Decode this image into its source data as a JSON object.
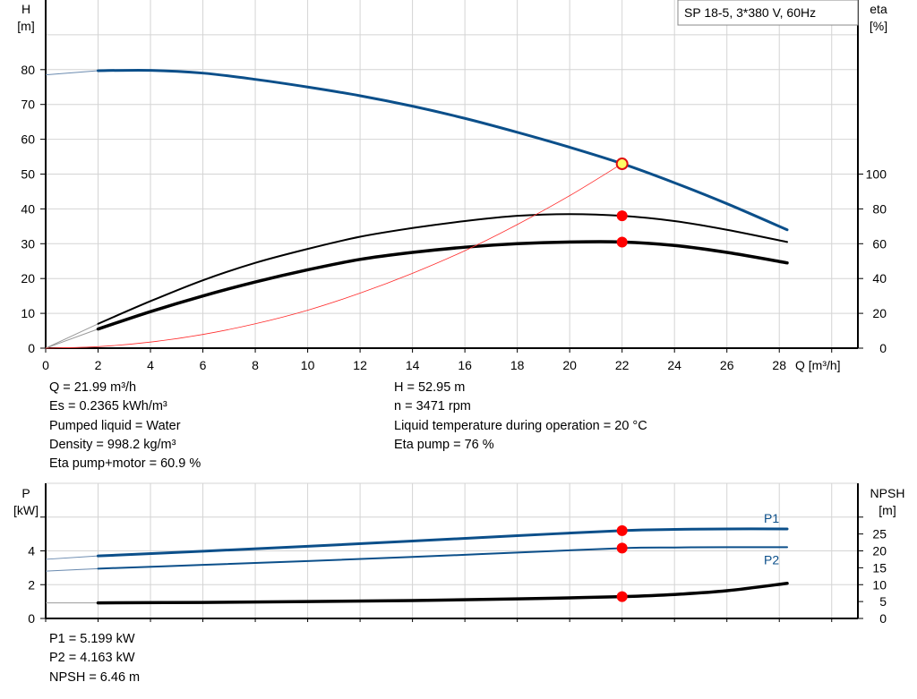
{
  "chart_data": [
    {
      "type": "line",
      "title": "SP 18-5, 3*380 V, 60Hz",
      "xlabel": "Q [m³/h]",
      "ylabel_left": [
        "H",
        "[m]"
      ],
      "ylabel_right": [
        "eta",
        "[%]"
      ],
      "xlim": [
        0,
        31
      ],
      "ylim_left": [
        0,
        100
      ],
      "ylim_right": [
        0,
        200
      ],
      "xticks": [
        0,
        2,
        4,
        6,
        8,
        10,
        12,
        14,
        16,
        18,
        20,
        22,
        24,
        26,
        28
      ],
      "yticks_left": [
        0,
        10,
        20,
        30,
        40,
        50,
        60,
        70,
        80
      ],
      "yticks_right": [
        0,
        20,
        40,
        60,
        80,
        100
      ],
      "grid": true,
      "series": [
        {
          "axis": "left",
          "color": "#0b4f8a",
          "x": [
            2,
            4,
            6,
            8,
            10,
            12,
            14,
            16,
            18,
            20,
            22,
            24,
            26,
            28.3
          ],
          "y": [
            79.7,
            79.8,
            79,
            77.2,
            75,
            72.5,
            69.5,
            66,
            62,
            57.7,
            53,
            47.5,
            41.5,
            34
          ],
          "ext_x": [
            0,
            2
          ],
          "ext_y": [
            78.5,
            79.7
          ],
          "width": 3
        },
        {
          "axis": "right",
          "color": "#000000",
          "x": [
            2,
            4,
            6,
            8,
            10,
            12,
            14,
            16,
            18,
            20,
            22,
            24,
            26,
            28.3
          ],
          "y": [
            14,
            27,
            39,
            49,
            57,
            64,
            69,
            73,
            76,
            77,
            76,
            73,
            68,
            61
          ],
          "ext_x": [
            0,
            2
          ],
          "ext_y": [
            0,
            14
          ],
          "width": 2
        },
        {
          "axis": "right",
          "color": "#000000",
          "x": [
            2,
            4,
            6,
            8,
            10,
            12,
            14,
            16,
            18,
            20,
            22,
            24,
            26,
            28.3
          ],
          "y": [
            11,
            21,
            30,
            38,
            45,
            51,
            55,
            58,
            60,
            61,
            61,
            59,
            55,
            49
          ],
          "ext_x": [
            0,
            2
          ],
          "ext_y": [
            0,
            11
          ],
          "width": 3.5
        },
        {
          "axis": "left",
          "color": "#ff2a2a",
          "x": [
            0,
            2,
            4,
            6,
            8,
            10,
            12,
            14,
            16,
            18,
            20,
            22
          ],
          "y": [
            0,
            0.44,
            1.75,
            3.94,
            7,
            10.9,
            15.8,
            21.5,
            28,
            35.5,
            43.8,
            53
          ],
          "width": 0.8
        }
      ],
      "operating_points": [
        {
          "axis": "left",
          "x": 22,
          "y": 52.95,
          "style": "yellow"
        },
        {
          "axis": "right",
          "x": 22,
          "y": 76
        },
        {
          "axis": "right",
          "x": 22,
          "y": 60.9
        }
      ]
    },
    {
      "type": "line",
      "ylabel_left": [
        "P",
        "[kW]"
      ],
      "ylabel_right": [
        "NPSH",
        "[m]"
      ],
      "xlim": [
        0,
        31
      ],
      "ylim_left": [
        0,
        8
      ],
      "ylim_right": [
        0,
        40
      ],
      "yticks_left": [
        0,
        2,
        4,
        6
      ],
      "yticks_left_labels": [
        "0",
        "2",
        "4",
        ""
      ],
      "yticks_right": [
        0,
        5,
        10,
        15,
        20,
        25,
        30
      ],
      "yticks_right_labels": [
        "0",
        "5",
        "10",
        "15",
        "20",
        "25",
        ""
      ],
      "grid": true,
      "series": [
        {
          "name": "P1",
          "axis": "left",
          "color": "#0b4f8a",
          "x": [
            2,
            6,
            10,
            14,
            18,
            22,
            24,
            26,
            28.3
          ],
          "y": [
            3.7,
            3.98,
            4.27,
            4.58,
            4.9,
            5.2,
            5.27,
            5.3,
            5.3
          ],
          "ext_x": [
            0,
            2
          ],
          "ext_y": [
            3.5,
            3.7
          ],
          "width": 3
        },
        {
          "name": "P2",
          "axis": "left",
          "color": "#0b4f8a",
          "x": [
            2,
            6,
            10,
            14,
            18,
            22,
            24,
            26,
            28.3
          ],
          "y": [
            2.95,
            3.17,
            3.4,
            3.64,
            3.9,
            4.16,
            4.2,
            4.22,
            4.22
          ],
          "ext_x": [
            0,
            2
          ],
          "ext_y": [
            2.8,
            2.95
          ],
          "width": 2
        },
        {
          "axis": "right",
          "color": "#000000",
          "x": [
            2,
            6,
            10,
            14,
            18,
            20,
            22,
            24,
            26,
            28.3
          ],
          "y": [
            4.6,
            4.75,
            5,
            5.3,
            5.8,
            6.1,
            6.46,
            7.1,
            8.2,
            10.4
          ],
          "ext_x": [
            0,
            2
          ],
          "ext_y": [
            4.6,
            4.6
          ],
          "width": 3.5
        }
      ],
      "operating_points": [
        {
          "axis": "left",
          "x": 22,
          "y": 5.199
        },
        {
          "axis": "left",
          "x": 22,
          "y": 4.163
        },
        {
          "axis": "right",
          "x": 22,
          "y": 6.46
        }
      ]
    }
  ],
  "results_top": {
    "left": [
      "Q = 21.99 m³/h",
      "Es = 0.2365 kWh/m³",
      "Pumped liquid = Water",
      "Density = 998.2 kg/m³",
      "Eta pump+motor = 60.9 %"
    ],
    "right": [
      "H = 52.95 m",
      "n = 3471 rpm",
      "Liquid temperature during operation = 20 °C",
      "Eta pump = 76 %"
    ]
  },
  "results_bottom": [
    "P1 = 5.199 kW",
    "P2 = 4.163 kW",
    "NPSH = 6.46 m"
  ]
}
